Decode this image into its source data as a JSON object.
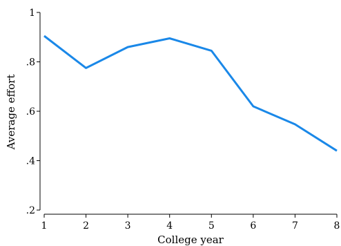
{
  "chart_data": {
    "type": "line",
    "xlabel": "College year",
    "ylabel": "Average effort",
    "x": [
      1,
      2,
      3,
      4,
      5,
      6,
      7,
      8
    ],
    "xticks": [
      "1",
      "2",
      "3",
      "4",
      "5",
      "6",
      "7",
      "8"
    ],
    "yticks": [
      {
        "value": 0.2,
        "label": ".2"
      },
      {
        "value": 0.4,
        "label": ".4"
      },
      {
        "value": 0.6,
        "label": ".6"
      },
      {
        "value": 0.8,
        "label": ".8"
      },
      {
        "value": 1.0,
        "label": "1"
      }
    ],
    "xlim": [
      1,
      8
    ],
    "ylim": [
      0.2,
      1.0
    ],
    "grid": false,
    "series": [
      {
        "values": [
          0.905,
          0.775,
          0.86,
          0.895,
          0.845,
          0.62,
          0.547,
          0.44
        ],
        "color": "#1a88e8"
      }
    ]
  }
}
